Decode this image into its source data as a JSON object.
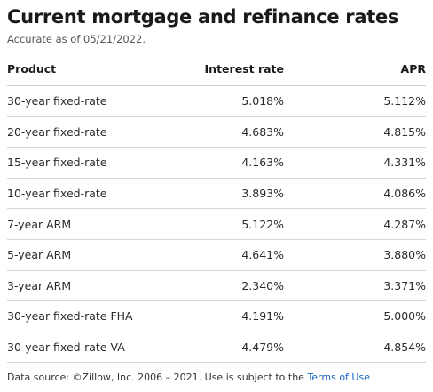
{
  "header": {
    "title": "Current mortgage and refinance rates",
    "subtitle": "Accurate as of 05/21/2022."
  },
  "table": {
    "columns": {
      "product": "Product",
      "interest_rate": "Interest rate",
      "apr": "APR"
    },
    "rows": [
      {
        "product": "30-year fixed-rate",
        "interest_rate": "5.018%",
        "apr": "5.112%"
      },
      {
        "product": "20-year fixed-rate",
        "interest_rate": "4.683%",
        "apr": "4.815%"
      },
      {
        "product": "15-year fixed-rate",
        "interest_rate": "4.163%",
        "apr": "4.331%"
      },
      {
        "product": "10-year fixed-rate",
        "interest_rate": "3.893%",
        "apr": "4.086%"
      },
      {
        "product": "7-year ARM",
        "interest_rate": "5.122%",
        "apr": "4.287%"
      },
      {
        "product": "5-year ARM",
        "interest_rate": "4.641%",
        "apr": "3.880%"
      },
      {
        "product": "3-year ARM",
        "interest_rate": "2.340%",
        "apr": "3.371%"
      },
      {
        "product": "30-year fixed-rate FHA",
        "interest_rate": "4.191%",
        "apr": "5.000%"
      },
      {
        "product": "30-year fixed-rate VA",
        "interest_rate": "4.479%",
        "apr": "4.854%"
      }
    ]
  },
  "footer": {
    "text": "Data source: ©Zillow, Inc. 2006 – 2021. Use is subject to the ",
    "link_label": "Terms of Use"
  },
  "colors": {
    "link": "#1a66c8",
    "divider": "#d6d6d6"
  }
}
